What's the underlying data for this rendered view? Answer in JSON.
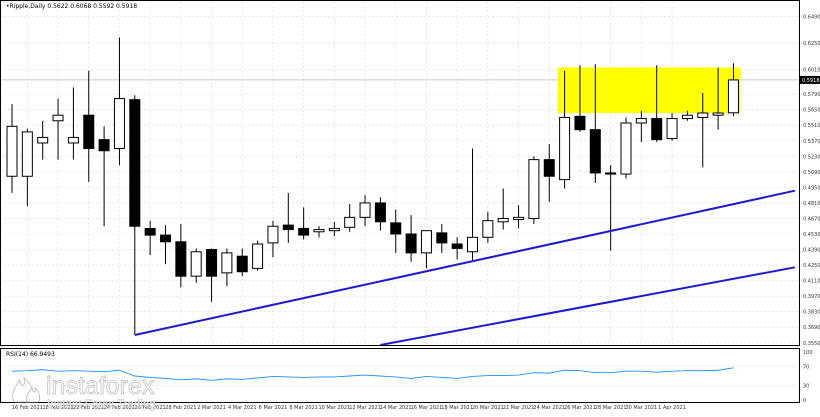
{
  "header": {
    "title": "•Ripple,Daily  0.5622 0.6068 0.5592 0.5918"
  },
  "watermark": {
    "brand": "instaforex",
    "tagline": "Instant Forex Trading",
    "logo_icon": "instaforex-flame-logo-icon",
    "color": "#ffffff"
  },
  "colors": {
    "background": "#ffffff",
    "grid": "#d9d9d9",
    "candle_body_bear": "#000000",
    "candle_body_bull": "#ffffff",
    "wick": "#000000",
    "trendline": "#1a1ad6",
    "resistance_zone": "#ffff00",
    "rsi_line": "#1e90ff",
    "axis_text": "#333333"
  },
  "chart_data": [
    {
      "type": "candlestick",
      "title": "•Ripple,Daily  0.5622 0.6068 0.5592 0.5918",
      "symbol": "Ripple",
      "timeframe": "Daily",
      "last_price": "0.5918",
      "y_ticks": [
        "0.6490",
        "0.6250",
        "0.6010",
        "0.5790",
        "0.5650",
        "0.5510",
        "0.5370",
        "0.5230",
        "0.5090",
        "0.4950",
        "0.4810",
        "0.4670",
        "0.4530",
        "0.4390",
        "0.4250",
        "0.4110",
        "0.3970",
        "0.3830",
        "0.3690",
        "0.3550"
      ],
      "x_ticks": [
        "16 Feb 2021",
        "18 Feb 2021",
        "22 Feb 2021",
        "24 Feb 2021",
        "26 Feb 2021",
        "28 Feb 2021",
        "2 Mar 2021",
        "4 Mar 2021",
        "6 Mar 2021",
        "8 Mar 2021",
        "10 Mar 2021",
        "12 Mar 2021",
        "14 Mar 2021",
        "16 Mar 2021",
        "18 Mar 2021",
        "20 Mar 2021",
        "22 Mar 2021",
        "24 Mar 2021",
        "26 Mar 2021",
        "28 Mar 2021",
        "30 Mar 2021",
        "1 Apr 2021"
      ],
      "ylim": [
        0.353,
        0.662
      ],
      "grid": true,
      "candles": [
        {
          "o": 0.505,
          "h": 0.57,
          "l": 0.49,
          "c": 0.55
        },
        {
          "o": 0.505,
          "h": 0.548,
          "l": 0.478,
          "c": 0.545
        },
        {
          "o": 0.535,
          "h": 0.555,
          "l": 0.52,
          "c": 0.54
        },
        {
          "o": 0.555,
          "h": 0.575,
          "l": 0.52,
          "c": 0.56
        },
        {
          "o": 0.535,
          "h": 0.585,
          "l": 0.52,
          "c": 0.54
        },
        {
          "o": 0.56,
          "h": 0.6,
          "l": 0.5,
          "c": 0.53
        },
        {
          "o": 0.538,
          "h": 0.55,
          "l": 0.46,
          "c": 0.528
        },
        {
          "o": 0.53,
          "h": 0.63,
          "l": 0.515,
          "c": 0.575
        },
        {
          "o": 0.574,
          "h": 0.578,
          "l": 0.362,
          "c": 0.46
        },
        {
          "o": 0.458,
          "h": 0.465,
          "l": 0.434,
          "c": 0.452
        },
        {
          "o": 0.452,
          "h": 0.461,
          "l": 0.426,
          "c": 0.446
        },
        {
          "o": 0.446,
          "h": 0.462,
          "l": 0.405,
          "c": 0.415
        },
        {
          "o": 0.415,
          "h": 0.44,
          "l": 0.409,
          "c": 0.437
        },
        {
          "o": 0.439,
          "h": 0.44,
          "l": 0.392,
          "c": 0.415
        },
        {
          "o": 0.418,
          "h": 0.44,
          "l": 0.406,
          "c": 0.436
        },
        {
          "o": 0.433,
          "h": 0.44,
          "l": 0.415,
          "c": 0.419
        },
        {
          "o": 0.422,
          "h": 0.447,
          "l": 0.42,
          "c": 0.444
        },
        {
          "o": 0.445,
          "h": 0.465,
          "l": 0.432,
          "c": 0.46
        },
        {
          "o": 0.461,
          "h": 0.49,
          "l": 0.445,
          "c": 0.457
        },
        {
          "o": 0.458,
          "h": 0.477,
          "l": 0.448,
          "c": 0.452
        },
        {
          "o": 0.455,
          "h": 0.46,
          "l": 0.45,
          "c": 0.457
        },
        {
          "o": 0.456,
          "h": 0.464,
          "l": 0.451,
          "c": 0.458
        },
        {
          "o": 0.459,
          "h": 0.48,
          "l": 0.455,
          "c": 0.468
        },
        {
          "o": 0.468,
          "h": 0.488,
          "l": 0.46,
          "c": 0.481
        },
        {
          "o": 0.481,
          "h": 0.486,
          "l": 0.456,
          "c": 0.464
        },
        {
          "o": 0.463,
          "h": 0.475,
          "l": 0.436,
          "c": 0.453
        },
        {
          "o": 0.453,
          "h": 0.47,
          "l": 0.428,
          "c": 0.436
        },
        {
          "o": 0.436,
          "h": 0.456,
          "l": 0.422,
          "c": 0.456
        },
        {
          "o": 0.454,
          "h": 0.462,
          "l": 0.436,
          "c": 0.445
        },
        {
          "o": 0.444,
          "h": 0.45,
          "l": 0.43,
          "c": 0.44
        },
        {
          "o": 0.437,
          "h": 0.53,
          "l": 0.429,
          "c": 0.45
        },
        {
          "o": 0.45,
          "h": 0.473,
          "l": 0.445,
          "c": 0.465
        },
        {
          "o": 0.464,
          "h": 0.494,
          "l": 0.457,
          "c": 0.467
        },
        {
          "o": 0.466,
          "h": 0.479,
          "l": 0.458,
          "c": 0.468
        },
        {
          "o": 0.467,
          "h": 0.523,
          "l": 0.462,
          "c": 0.52
        },
        {
          "o": 0.52,
          "h": 0.534,
          "l": 0.482,
          "c": 0.505
        },
        {
          "o": 0.502,
          "h": 0.6,
          "l": 0.494,
          "c": 0.558
        },
        {
          "o": 0.559,
          "h": 0.605,
          "l": 0.545,
          "c": 0.547
        },
        {
          "o": 0.547,
          "h": 0.606,
          "l": 0.499,
          "c": 0.508
        },
        {
          "o": 0.508,
          "h": 0.515,
          "l": 0.438,
          "c": 0.507
        },
        {
          "o": 0.507,
          "h": 0.558,
          "l": 0.503,
          "c": 0.553
        },
        {
          "o": 0.553,
          "h": 0.564,
          "l": 0.536,
          "c": 0.557
        },
        {
          "o": 0.557,
          "h": 0.605,
          "l": 0.536,
          "c": 0.538
        },
        {
          "o": 0.539,
          "h": 0.562,
          "l": 0.537,
          "c": 0.557
        },
        {
          "o": 0.557,
          "h": 0.564,
          "l": 0.555,
          "c": 0.56
        },
        {
          "o": 0.558,
          "h": 0.58,
          "l": 0.513,
          "c": 0.562
        },
        {
          "o": 0.56,
          "h": 0.603,
          "l": 0.547,
          "c": 0.562
        },
        {
          "o": 0.5622,
          "h": 0.6068,
          "l": 0.5592,
          "c": 0.5918
        }
      ],
      "resistance_zone": {
        "y_from": 0.562,
        "y_to": 0.603,
        "from_index": 36,
        "to_index": 47
      },
      "trendlines": [
        {
          "from": {
            "index": 8,
            "price": 0.362
          },
          "to": {
            "index": 51,
            "price": 0.492
          }
        },
        {
          "from": {
            "index": 24,
            "price": 0.353
          },
          "to": {
            "index": 51,
            "price": 0.423
          }
        }
      ]
    },
    {
      "type": "line",
      "title": "RSI(14) 66.9493",
      "label": "RSI(14)",
      "last_value": "66.9493",
      "y_ticks": [
        "100",
        "70",
        "30",
        "0"
      ],
      "ylim": [
        0,
        100
      ],
      "values": [
        60,
        61,
        63,
        60,
        61,
        60,
        59,
        62,
        50,
        47,
        45,
        42,
        44,
        41,
        44,
        43,
        46,
        49,
        48,
        47,
        48,
        48,
        50,
        52,
        50,
        48,
        45,
        49,
        47,
        45,
        49,
        51,
        51,
        52,
        57,
        56,
        62,
        61,
        57,
        57,
        60,
        60,
        58,
        60,
        61,
        61,
        62,
        67
      ]
    }
  ]
}
